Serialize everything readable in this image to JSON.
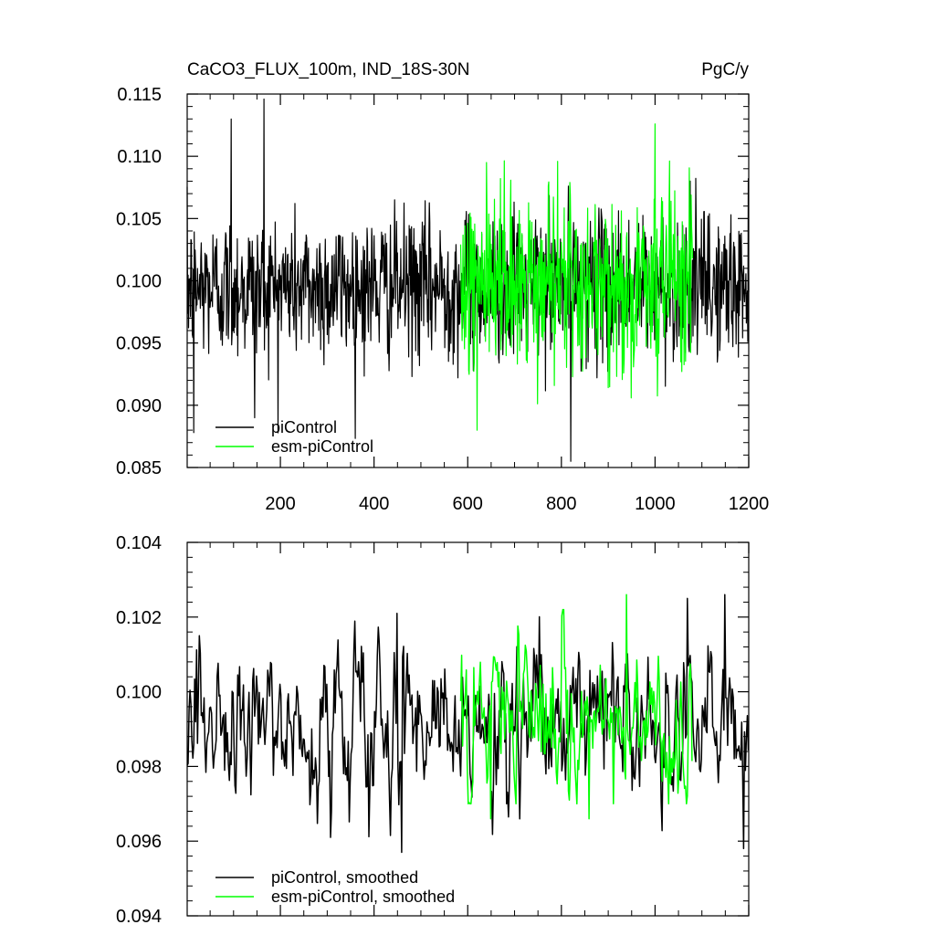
{
  "chart_data": [
    {
      "type": "line",
      "title": "CaCO3_FLUX_100m, IND_18S-30N",
      "units": "PgC/y",
      "xlim": [
        1,
        1200
      ],
      "ylim": [
        0.085,
        0.115
      ],
      "x_ticks": [
        200,
        400,
        600,
        800,
        1000,
        1200
      ],
      "x_tick_labels": [
        "200",
        "400",
        "600",
        "800",
        "1000",
        "1200"
      ],
      "y_ticks": [
        0.085,
        0.09,
        0.095,
        0.1,
        0.105,
        0.11,
        0.115
      ],
      "y_tick_labels": [
        "0.085",
        "0.090",
        "0.095",
        "0.100",
        "0.105",
        "0.110",
        "0.115"
      ],
      "legend_position": "bottom-left",
      "series": [
        {
          "name": "piControl",
          "color": "#000000",
          "x_range": [
            1,
            1200
          ],
          "mean": 0.0995,
          "approx_range": [
            0.0855,
            0.1146
          ],
          "features": [
            [
              95,
              0.113
            ],
            [
              165,
              0.1146
            ],
            [
              15,
              0.0878
            ],
            [
              145,
              0.089
            ],
            [
              820,
              0.0855
            ],
            [
              1075,
              0.108
            ]
          ]
        },
        {
          "name": "esm-piControl",
          "color": "#00ff00",
          "x_range": [
            585,
            1080
          ],
          "mean": 0.0997,
          "approx_range": [
            0.088,
            0.1126
          ],
          "features": [
            [
              620,
              0.088
            ],
            [
              1000,
              0.1126
            ],
            [
              640,
              0.1095
            ]
          ]
        }
      ]
    },
    {
      "type": "line",
      "title": "",
      "xlim": [
        1,
        1200
      ],
      "ylim": [
        0.094,
        0.104
      ],
      "y_ticks": [
        0.094,
        0.096,
        0.098,
        0.1,
        0.102,
        0.104
      ],
      "y_tick_labels": [
        "0.094",
        "0.096",
        "0.098",
        "0.100",
        "0.102",
        "0.104"
      ],
      "legend_position": "bottom-left",
      "series": [
        {
          "name": "piControl, smoothed",
          "color": "#000000",
          "x_range": [
            1,
            1200
          ],
          "mean": 0.0991,
          "approx_range": [
            0.0957,
            0.1026
          ],
          "features": [
            [
              460,
              0.0957
            ],
            [
              1190,
              0.0958
            ],
            [
              1150,
              0.1026
            ],
            [
              1070,
              0.1025
            ],
            [
              450,
              0.1021
            ]
          ]
        },
        {
          "name": "esm-piControl, smoothed",
          "color": "#00ff00",
          "x_range": [
            585,
            1080
          ],
          "mean": 0.0993,
          "approx_range": [
            0.0966,
            0.1026
          ],
          "features": [
            [
              940,
              0.1026
            ],
            [
              650,
              0.0966
            ],
            [
              860,
              0.0966
            ]
          ]
        }
      ]
    }
  ]
}
